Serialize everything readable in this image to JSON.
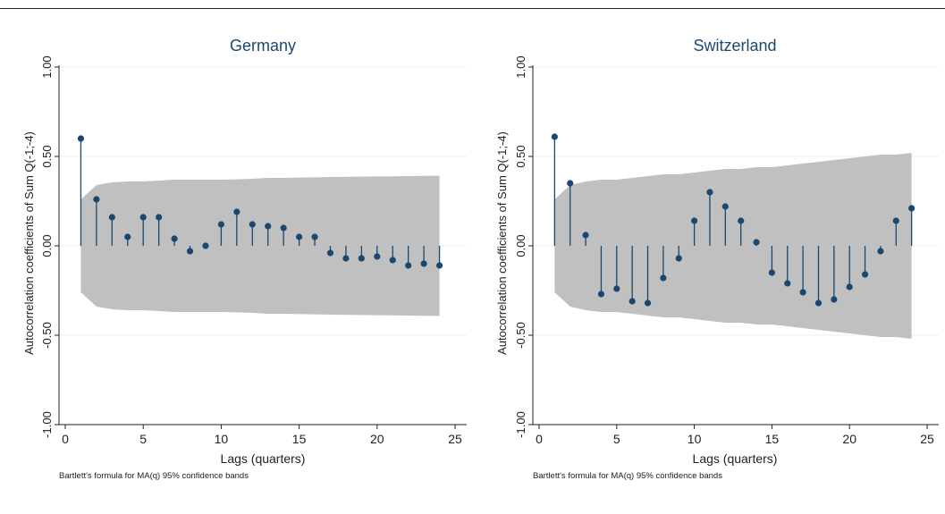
{
  "colors": {
    "marker": "#1a476f",
    "band": "#c0c0c0",
    "grid": "#eaf2f3",
    "axis": "#222222",
    "title": "#1a476f"
  },
  "chart_data": [
    {
      "type": "scatter",
      "subtype": "stem",
      "title": "Germany",
      "xlabel": "Lags (quarters)",
      "ylabel": "Autocorrelation coefficients of Sum Q(-1;-4)",
      "note": "Bartlett's formula for MA(q) 95% confidence bands",
      "xlim": [
        0,
        25
      ],
      "ylim": [
        -1,
        1
      ],
      "xticks": [
        0,
        5,
        10,
        15,
        20,
        25
      ],
      "yticks": [
        -1,
        -0.5,
        0,
        0.5,
        1
      ],
      "xtick_labels": [
        "0",
        "5",
        "10",
        "15",
        "20",
        "25"
      ],
      "ytick_labels": [
        "-1.00",
        "-0.50",
        "0.00",
        "0.50",
        "1.00"
      ],
      "grid": true,
      "x": [
        1,
        2,
        3,
        4,
        5,
        6,
        7,
        8,
        9,
        10,
        11,
        12,
        13,
        14,
        15,
        16,
        17,
        18,
        19,
        20,
        21,
        22,
        23,
        24
      ],
      "values": [
        0.6,
        0.26,
        0.16,
        0.05,
        0.16,
        0.16,
        0.04,
        -0.03,
        0.0,
        0.12,
        0.19,
        0.12,
        0.11,
        0.1,
        0.05,
        0.05,
        -0.04,
        -0.07,
        -0.07,
        -0.06,
        -0.08,
        -0.11,
        -0.1,
        -0.11
      ],
      "band": [
        0.26,
        0.34,
        0.355,
        0.36,
        0.36,
        0.365,
        0.37,
        0.37,
        0.37,
        0.37,
        0.372,
        0.375,
        0.38,
        0.38,
        0.382,
        0.383,
        0.385,
        0.386,
        0.387,
        0.388,
        0.389,
        0.39,
        0.391,
        0.392
      ]
    },
    {
      "type": "scatter",
      "subtype": "stem",
      "title": "Switzerland",
      "xlabel": "Lags (quarters)",
      "ylabel": "Autocorrelation coefficients of Sum Q(-1;-4)",
      "note": "Bartlett's formula for MA(q) 95% confidence bands",
      "xlim": [
        0,
        25
      ],
      "ylim": [
        -1,
        1
      ],
      "xticks": [
        0,
        5,
        10,
        15,
        20,
        25
      ],
      "yticks": [
        -1,
        -0.5,
        0,
        0.5,
        1
      ],
      "xtick_labels": [
        "0",
        "5",
        "10",
        "15",
        "20",
        "25"
      ],
      "ytick_labels": [
        "-1.00",
        "-0.50",
        "0.00",
        "0.50",
        "1.00"
      ],
      "grid": true,
      "x": [
        1,
        2,
        3,
        4,
        5,
        6,
        7,
        8,
        9,
        10,
        11,
        12,
        13,
        14,
        15,
        16,
        17,
        18,
        19,
        20,
        21,
        22,
        23,
        24
      ],
      "values": [
        0.61,
        0.35,
        0.06,
        -0.27,
        -0.24,
        -0.31,
        -0.32,
        -0.18,
        -0.07,
        0.14,
        0.3,
        0.22,
        0.14,
        0.02,
        -0.15,
        -0.21,
        -0.26,
        -0.32,
        -0.3,
        -0.23,
        -0.16,
        -0.03,
        0.14,
        0.21
      ],
      "band": [
        0.26,
        0.34,
        0.36,
        0.37,
        0.37,
        0.38,
        0.39,
        0.4,
        0.4,
        0.41,
        0.42,
        0.43,
        0.43,
        0.44,
        0.44,
        0.45,
        0.46,
        0.47,
        0.48,
        0.49,
        0.5,
        0.51,
        0.51,
        0.52
      ]
    }
  ]
}
